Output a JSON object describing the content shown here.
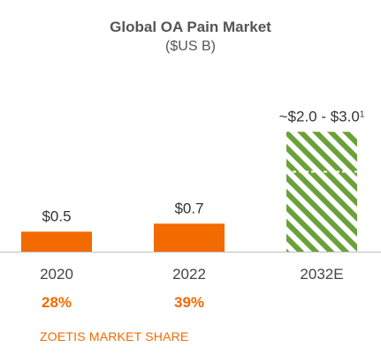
{
  "chart_data": {
    "type": "bar",
    "title": "Global OA Pain Market",
    "subtitle": "($US B)",
    "categories": [
      "2020",
      "2022",
      "2032E"
    ],
    "values": [
      0.5,
      0.7,
      3.0
    ],
    "range_low": [
      null,
      null,
      2.0
    ],
    "value_labels": [
      "$0.5",
      "$0.7",
      "~$2.0 - $3.0"
    ],
    "label_superscript": [
      "",
      "",
      "1"
    ],
    "bar_styles": [
      "solid",
      "solid",
      "hatched"
    ],
    "ylim": [
      0,
      3.05
    ],
    "grid": false,
    "xlabel": "",
    "ylabel": ""
  },
  "market_share": {
    "label": "ZOETIS MARKET SHARE",
    "values": [
      "28%",
      "39%"
    ]
  },
  "colors": {
    "bar": "#f26a00",
    "hatch": "#6aa13b",
    "text": "#555555",
    "share_text": "#f26a00",
    "axis": "#bfbfbf"
  }
}
